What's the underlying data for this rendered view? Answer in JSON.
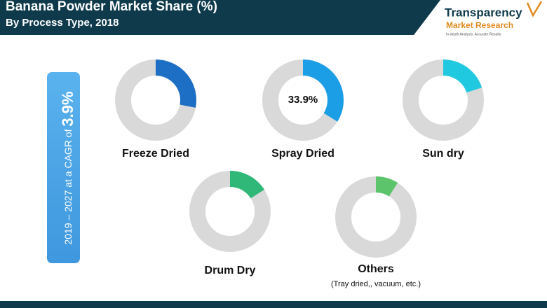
{
  "header": {
    "title": "Banana Powder Market Share (%)",
    "subtitle": "By Process Type, 2018"
  },
  "logo": {
    "name": "Transparency",
    "tagline": "Market Research",
    "motto": "In-depth Analysis. Accurate Results"
  },
  "cagr": {
    "text": "2019 – 2027 at a CAGR of ",
    "value": "3.9%"
  },
  "chart_data": [
    {
      "type": "donut",
      "title": "Freeze Dried",
      "values": [
        28
      ],
      "color": "#1c6fc4"
    },
    {
      "type": "donut",
      "title": "Spray Dried",
      "values": [
        33.9
      ],
      "value_labels": [
        "33.9%"
      ],
      "color": "#1b9ee6"
    },
    {
      "type": "donut",
      "title": "Sun dry",
      "values": [
        20
      ],
      "color": "#21c9e0"
    },
    {
      "type": "donut",
      "title": "Drum Dry",
      "values": [
        16
      ],
      "color": "#2fb877"
    },
    {
      "type": "donut",
      "title": "Others",
      "subtitle": "(Tray dried,, vacuum, etc.)",
      "values": [
        9
      ],
      "color": "#5cc46a"
    }
  ]
}
